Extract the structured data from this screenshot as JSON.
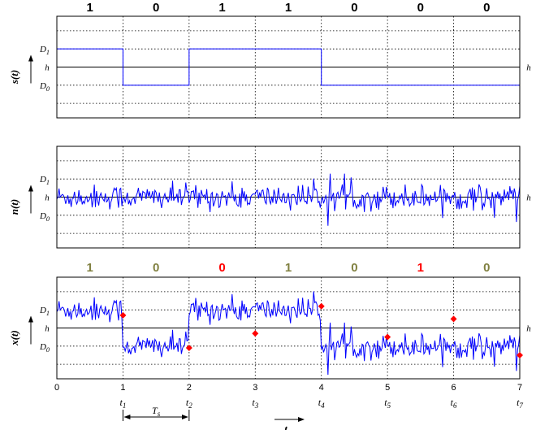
{
  "chart_data": [
    {
      "type": "line",
      "name": "s(t)",
      "ylabel": "s(t)",
      "bits": [
        "1",
        "0",
        "1",
        "1",
        "0",
        "0",
        "0"
      ],
      "xlim": [
        0,
        7
      ],
      "ylim": [
        -1.4,
        1.4
      ],
      "levels": {
        "D1": 0.5,
        "h": 0,
        "D0": -0.5
      },
      "level_labels": {
        "D1": "D",
        "D1_sub": "1",
        "h": "h",
        "D0": "D",
        "D0_sub": "0",
        "right": "h"
      },
      "step_x": [
        0,
        2,
        2,
        4,
        4,
        7
      ],
      "signal": [
        0.5,
        -0.5,
        0.5,
        0.5,
        -0.5,
        -0.5,
        -0.5
      ],
      "grid": true,
      "series_color": "#0000ff"
    },
    {
      "type": "line",
      "name": "n(t)",
      "ylabel": "n(t)",
      "xlim": [
        0,
        7
      ],
      "ylim": [
        -1.4,
        1.4
      ],
      "levels": {
        "D1": 0.5,
        "h": 0,
        "D0": -0.5
      },
      "level_labels": {
        "D1": "D",
        "D1_sub": "1",
        "h": "h",
        "D0": "D",
        "D0_sub": "0",
        "right": "h"
      },
      "noise_amplitude_approx": 0.35,
      "grid": true,
      "series_color": "#0000ff"
    },
    {
      "type": "line",
      "name": "x(t)",
      "ylabel": "x(t)",
      "xlabel": "t",
      "xlim": [
        0,
        7
      ],
      "ylim": [
        -1.4,
        1.4
      ],
      "levels": {
        "D1": 0.5,
        "h": 0,
        "D0": -0.5
      },
      "level_labels": {
        "D1": "D",
        "D1_sub": "1",
        "h": "h",
        "D0": "D",
        "D0_sub": "0",
        "right": "h"
      },
      "decided_bits": [
        {
          "label": "1",
          "correct": true
        },
        {
          "label": "0",
          "correct": true
        },
        {
          "label": "0",
          "correct": false
        },
        {
          "label": "1",
          "correct": true
        },
        {
          "label": "0",
          "correct": true
        },
        {
          "label": "1",
          "correct": false
        },
        {
          "label": "0",
          "correct": true
        }
      ],
      "samples": [
        {
          "x": 1.0,
          "y": 0.35
        },
        {
          "x": 2.0,
          "y": -0.55
        },
        {
          "x": 3.0,
          "y": -0.15
        },
        {
          "x": 4.0,
          "y": 0.6
        },
        {
          "x": 5.0,
          "y": -0.25
        },
        {
          "x": 6.0,
          "y": 0.25
        },
        {
          "x": 7.0,
          "y": -0.75
        }
      ],
      "x_ticks": [
        "0",
        "1",
        "2",
        "3",
        "4",
        "5",
        "6",
        "7"
      ],
      "sample_time_labels": [
        {
          "base": "t",
          "sub": "1"
        },
        {
          "base": "t",
          "sub": "2"
        },
        {
          "base": "t",
          "sub": "3"
        },
        {
          "base": "t",
          "sub": "4"
        },
        {
          "base": "t",
          "sub": "5"
        },
        {
          "base": "t",
          "sub": "6"
        },
        {
          "base": "t",
          "sub": "7"
        }
      ],
      "period_label": {
        "base": "T",
        "sub": "s"
      },
      "grid": true,
      "series_color": "#0000ff",
      "sample_color": "#ff0000",
      "correct_bit_color": "#808040",
      "error_bit_color": "#ff0000"
    }
  ]
}
